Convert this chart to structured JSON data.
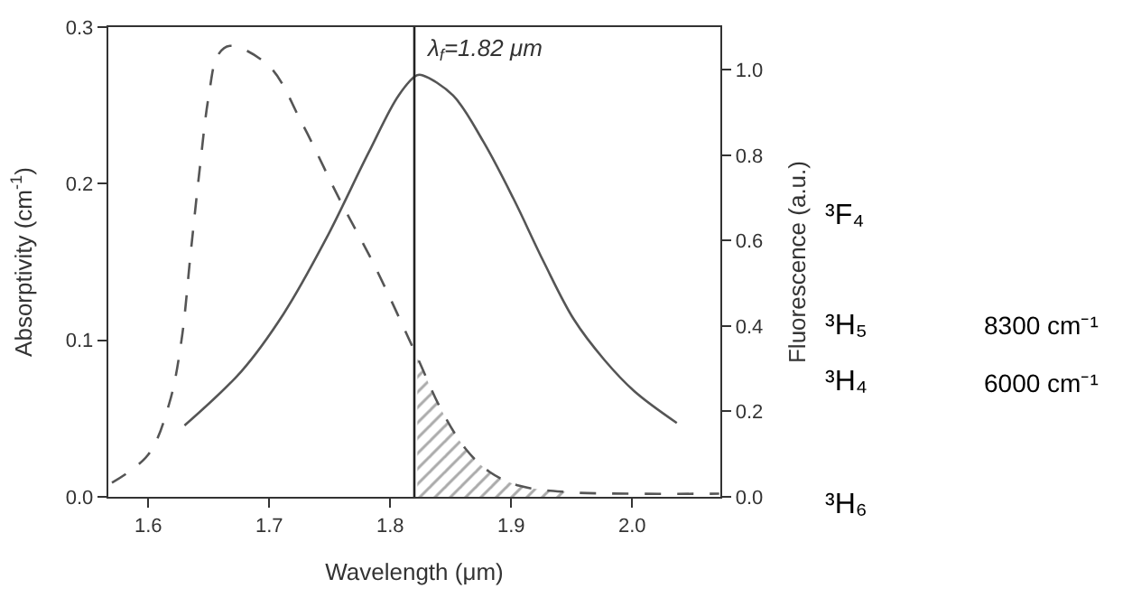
{
  "chart_data": {
    "type": "line",
    "xlabel": "Wavelength (μm)",
    "ylabel": "Absorptivity (cm$^{-1}$)",
    "y2label": "Fluorescence (a.u.)",
    "xlim": [
      1.567,
      2.073
    ],
    "xticks": [
      1.6,
      1.7,
      1.8,
      1.9,
      {
        "value": 2,
        "label": "2.0"
      }
    ],
    "ylim": [
      0,
      0.3
    ],
    "yticks": [
      {
        "value": 0,
        "label": "0.0"
      },
      0.1,
      0.2,
      0.3
    ],
    "y2lim": [
      0,
      1.1
    ],
    "y2ticks": [
      {
        "value": 0,
        "label": "0.0"
      },
      0.2,
      0.4,
      0.6,
      0.8,
      {
        "value": 1,
        "label": "1.0"
      }
    ],
    "series": [
      {
        "color": "#555555",
        "line_style": "dashed",
        "x": [
          1.57,
          1.6,
          1.6175,
          1.6275,
          1.635,
          1.6425,
          1.65,
          1.6575,
          1.6675,
          1.7,
          1.7275,
          1.7575,
          1.7875,
          1.8225,
          1.842,
          1.862,
          1.882,
          1.907,
          1.947,
          2.002,
          2.072
        ],
        "values": [
          0.009,
          0.027,
          0.06,
          0.1,
          0.155,
          0.209,
          0.256,
          0.282,
          0.288,
          0.275,
          0.238,
          0.191,
          0.147,
          0.089,
          0.056,
          0.031,
          0.016,
          0.007,
          0.003,
          0.002,
          0.002
        ]
      },
      {
        "color": "#555555",
        "line_style": "solid",
        "axis": "y2",
        "x": [
          1.63,
          1.677,
          1.712,
          1.747,
          1.782,
          1.807,
          1.822,
          1.827,
          1.852,
          1.877,
          1.902,
          1.927,
          1.952,
          1.977,
          2.002,
          2.037
        ],
        "values": [
          0.167,
          0.294,
          0.429,
          0.604,
          0.805,
          0.94,
          0.987,
          0.987,
          0.94,
          0.832,
          0.698,
          0.55,
          0.415,
          0.321,
          0.247,
          0.173
        ]
      },
      {
        "type": "area",
        "color": "#555555",
        "x": [
          1.8225,
          1.842,
          1.862,
          1.882,
          1.907,
          1.947
        ],
        "values": [
          0.089,
          0.056,
          0.031,
          0.016,
          0.007,
          0.003
        ]
      }
    ],
    "ref_lines": [
      {
        "axis": "x",
        "value": 1.82,
        "label": "λ$_{f}$=1.82 μm",
        "color": "#222222"
      }
    ],
    "annotations": [
      "³F₄",
      "³H₅",
      "³H₄",
      "³H₆",
      "8300 cm⁻¹",
      "6000 cm⁻¹"
    ]
  }
}
